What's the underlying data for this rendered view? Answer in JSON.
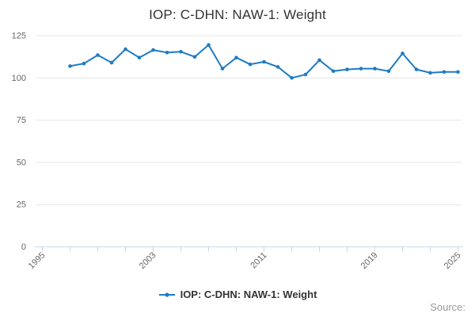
{
  "title": "IOP: C-DHN: NAW-1: Weight",
  "source_label": "Source:",
  "legend": {
    "position": "bottom",
    "items": [
      {
        "label": "IOP: C-DHN: NAW-1: Weight",
        "marker": "line-dot-icon"
      }
    ]
  },
  "colors": {
    "line": "#1d7cc4",
    "marker": "#1d7cc4",
    "grid": "#e6e6e6",
    "axis_line": "#ccd6eb",
    "tick_mark": "#ccd6eb",
    "axis_label": "#666666",
    "title_text": "#333333",
    "legend_text": "#333333",
    "source_text": "#999999",
    "background": "#ffffff"
  },
  "chart_data": {
    "type": "line",
    "title": "IOP: C-DHN: NAW-1: Weight",
    "xlabel": "",
    "ylabel": "",
    "grid": "horizontal",
    "legend_position": "bottom",
    "xlim": [
      1995,
      2025
    ],
    "ylim": [
      0,
      125
    ],
    "y_ticks": [
      0,
      25,
      50,
      75,
      100,
      125
    ],
    "x_minor_tick_step": 2,
    "x_tick_labels": [
      "1995",
      "2003",
      "2011",
      "2019",
      "2025"
    ],
    "x_tick_label_years": [
      1995,
      2003,
      2011,
      2019,
      2025
    ],
    "x": [
      1997,
      1998,
      1999,
      2000,
      2001,
      2002,
      2003,
      2004,
      2005,
      2006,
      2007,
      2008,
      2009,
      2010,
      2011,
      2012,
      2013,
      2014,
      2015,
      2016,
      2017,
      2018,
      2019,
      2020,
      2021,
      2022,
      2023,
      2024,
      2025
    ],
    "series": [
      {
        "name": "IOP: C-DHN: NAW-1: Weight",
        "values": [
          107,
          108.5,
          113.5,
          109,
          117,
          112,
          116.5,
          115,
          115.5,
          112.5,
          119.5,
          105.5,
          112,
          108,
          109.5,
          106.5,
          100,
          102,
          110.5,
          104,
          105,
          105.5,
          105.5,
          104,
          114.5,
          105,
          103,
          103.5,
          103.5
        ]
      }
    ]
  }
}
